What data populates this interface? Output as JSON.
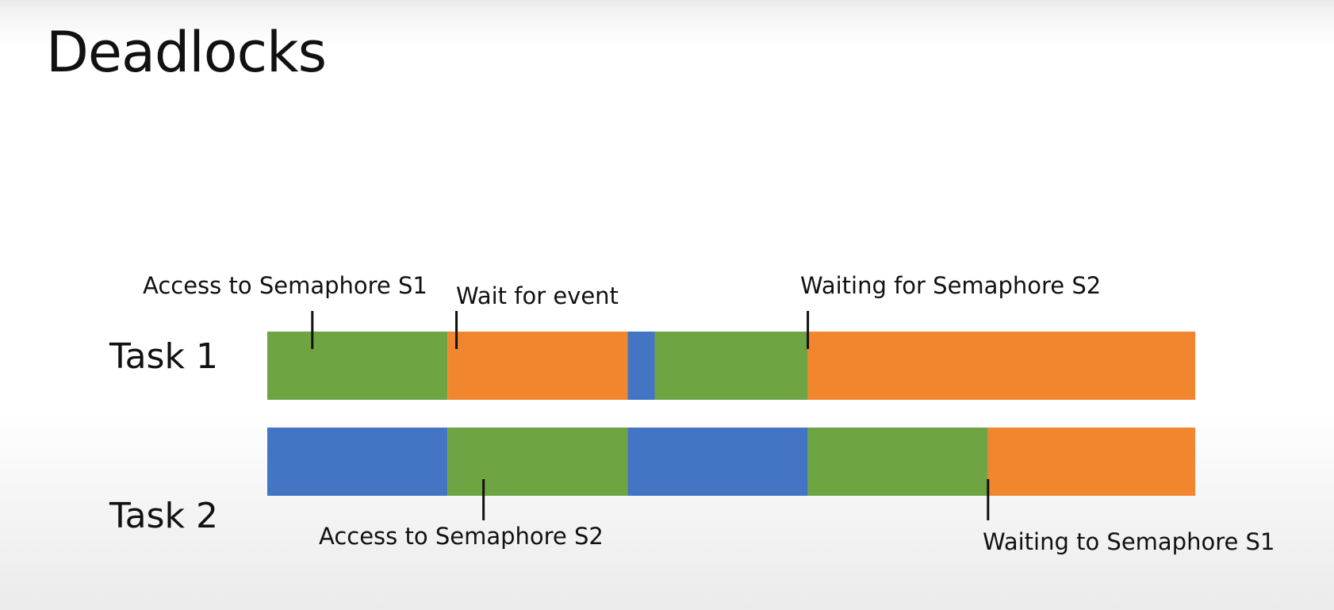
{
  "slide": {
    "title": "Deadlocks"
  },
  "colors": {
    "running": "#6ea442",
    "blocked": "#f2862e",
    "other": "#4474c4",
    "background": "#ffffff"
  },
  "time_units": 10,
  "tasks": [
    {
      "label": "Task 1",
      "segments": [
        {
          "start": 0,
          "end": 2,
          "state": "running"
        },
        {
          "start": 2,
          "end": 4,
          "state": "blocked"
        },
        {
          "start": 4,
          "end": 4.3,
          "state": "other"
        },
        {
          "start": 4.3,
          "end": 6,
          "state": "running"
        },
        {
          "start": 6,
          "end": 10.3,
          "state": "blocked"
        }
      ],
      "events": [
        {
          "time": 0.5,
          "label": "Access to Semaphore S1"
        },
        {
          "time": 2.1,
          "label": "Wait for event"
        },
        {
          "time": 6.0,
          "label": "Waiting for Semaphore S2"
        }
      ]
    },
    {
      "label": "Task 2",
      "segments": [
        {
          "start": 0,
          "end": 2,
          "state": "other"
        },
        {
          "start": 2,
          "end": 4,
          "state": "running"
        },
        {
          "start": 4,
          "end": 6,
          "state": "other"
        },
        {
          "start": 6,
          "end": 8,
          "state": "running"
        },
        {
          "start": 8,
          "end": 10.3,
          "state": "blocked"
        }
      ],
      "events": [
        {
          "time": 2.4,
          "label": "Access to Semaphore S2"
        },
        {
          "time": 8.0,
          "label": "Waiting to Semaphore S1"
        }
      ]
    }
  ]
}
